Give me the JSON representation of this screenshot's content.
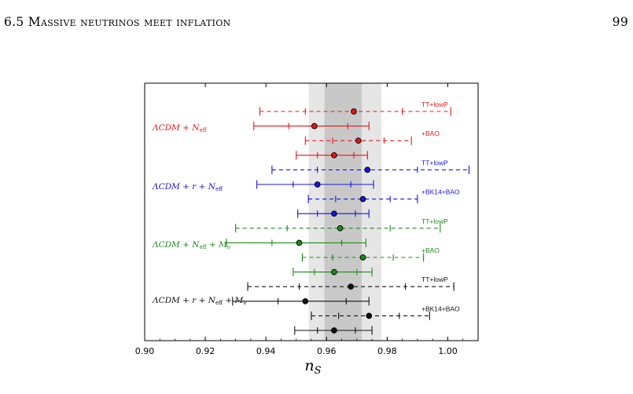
{
  "header": {
    "section": "6.5 Massive neutrinos meet inflation",
    "page_number": "99"
  },
  "caption_fragment": "% %",
  "chart_data": {
    "type": "scatter",
    "orientation": "horizontal error bars (forest plot)",
    "xlabel": "n_S",
    "xlim": [
      0.9,
      1.01
    ],
    "xticks": [
      0.9,
      0.92,
      0.94,
      0.96,
      0.98,
      1.0
    ],
    "xtick_labels": [
      "0.90",
      "0.92",
      "0.94",
      "0.96",
      "0.98",
      "1.00"
    ],
    "grid": false,
    "bands": [
      {
        "range": [
          0.9541,
          0.9781
        ],
        "color": "#e6e6e6"
      },
      {
        "range": [
          0.9593,
          0.9716
        ],
        "color": "#c8c8c8"
      }
    ],
    "groups": [
      {
        "model": "ΛCDM + N_eff",
        "color": "#e8141b",
        "rows": [
          {
            "dataset": "TT+lowP",
            "central": 0.969,
            "sigma1": [
              0.953,
              0.985
            ],
            "sigma2": [
              0.938,
              1.001
            ],
            "style": "dashed"
          },
          {
            "dataset": "",
            "central": 0.956,
            "sigma1": [
              0.9475,
              0.967
            ],
            "sigma2": [
              0.936,
              0.974
            ],
            "style": "solid"
          },
          {
            "dataset": "+BAO",
            "central": 0.9705,
            "sigma1": [
              0.962,
              0.979
            ],
            "sigma2": [
              0.953,
              0.988
            ],
            "style": "dashed"
          },
          {
            "dataset": "",
            "central": 0.9625,
            "sigma1": [
              0.957,
              0.969
            ],
            "sigma2": [
              0.95,
              0.9735
            ],
            "style": "solid"
          }
        ]
      },
      {
        "model": "ΛCDM + r + N_eff",
        "color": "#1a14dd",
        "rows": [
          {
            "dataset": "TT+lowP",
            "central": 0.9735,
            "sigma1": [
              0.957,
              0.99
            ],
            "sigma2": [
              0.942,
              1.007
            ],
            "style": "dashed"
          },
          {
            "dataset": "",
            "central": 0.957,
            "sigma1": [
              0.949,
              0.968
            ],
            "sigma2": [
              0.937,
              0.9755
            ],
            "style": "solid"
          },
          {
            "dataset": "+BK14+BAO",
            "central": 0.972,
            "sigma1": [
              0.963,
              0.981
            ],
            "sigma2": [
              0.954,
              0.99
            ],
            "style": "dashed"
          },
          {
            "dataset": "",
            "central": 0.9625,
            "sigma1": [
              0.957,
              0.9695
            ],
            "sigma2": [
              0.9505,
              0.974
            ],
            "style": "solid"
          }
        ]
      },
      {
        "model": "ΛCDM + N_eff + M_ν",
        "color": "#1d8a1a",
        "rows": [
          {
            "dataset": "TT+lowP",
            "central": 0.9645,
            "sigma1": [
              0.947,
              0.981
            ],
            "sigma2": [
              0.93,
              0.9975
            ],
            "style": "dashed"
          },
          {
            "dataset": "",
            "central": 0.951,
            "sigma1": [
              0.942,
              0.965
            ],
            "sigma2": [
              0.927,
              0.973
            ],
            "style": "solid"
          },
          {
            "dataset": "+BAO",
            "central": 0.972,
            "sigma1": [
              0.962,
              0.982
            ],
            "sigma2": [
              0.952,
              0.992
            ],
            "style": "dashed"
          },
          {
            "dataset": "",
            "central": 0.9625,
            "sigma1": [
              0.956,
              0.97
            ],
            "sigma2": [
              0.949,
              0.975
            ],
            "style": "solid"
          }
        ]
      },
      {
        "model": "ΛCDM + r + N_eff + M_ν",
        "color": "#111111",
        "rows": [
          {
            "dataset": "TT+lowP",
            "central": 0.968,
            "sigma1": [
              0.951,
              0.986
            ],
            "sigma2": [
              0.934,
              1.002
            ],
            "style": "dashed"
          },
          {
            "dataset": "",
            "central": 0.953,
            "sigma1": [
              0.944,
              0.9665
            ],
            "sigma2": [
              0.929,
              0.974
            ],
            "style": "solid"
          },
          {
            "dataset": "+BK14+BAO",
            "central": 0.974,
            "sigma1": [
              0.964,
              0.984
            ],
            "sigma2": [
              0.955,
              0.994
            ],
            "style": "dashed"
          },
          {
            "dataset": "",
            "central": 0.9625,
            "sigma1": [
              0.957,
              0.9695
            ],
            "sigma2": [
              0.9495,
              0.975
            ],
            "style": "solid"
          }
        ]
      }
    ]
  }
}
